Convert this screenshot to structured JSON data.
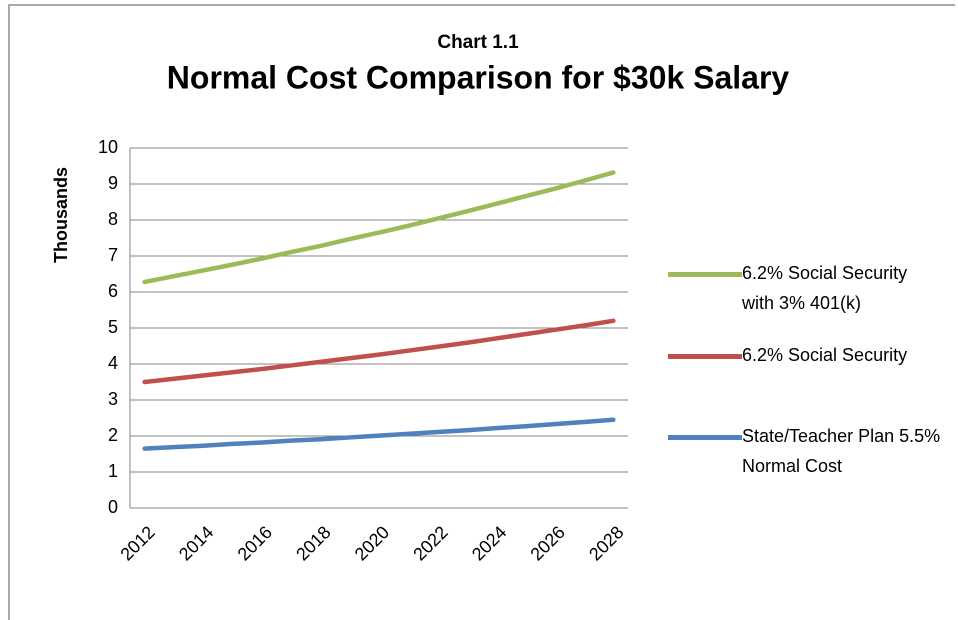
{
  "chart_data": {
    "type": "line",
    "subtitle": "Chart 1.1",
    "title": "Normal Cost Comparison for $30k Salary",
    "y_label": "Thousands",
    "categories": [
      "2012",
      null,
      "2014",
      null,
      "2016",
      null,
      "2018",
      null,
      "2020",
      null,
      "2022",
      null,
      "2024",
      null,
      "2026",
      null,
      "2028"
    ],
    "series": [
      {
        "name": "6.2% Social Security with 3% 401(k)",
        "color": "#9bbb59",
        "values": [
          6.28,
          6.44,
          6.6,
          6.76,
          6.93,
          7.11,
          7.28,
          7.47,
          7.65,
          7.84,
          8.04,
          8.24,
          8.45,
          8.66,
          8.87,
          9.09,
          9.32
        ]
      },
      {
        "name": "6.2% Social Security",
        "color": "#c0504d",
        "values": [
          3.5,
          3.59,
          3.68,
          3.77,
          3.86,
          3.96,
          4.06,
          4.16,
          4.26,
          4.37,
          4.48,
          4.59,
          4.71,
          4.83,
          4.95,
          5.07,
          5.2
        ]
      },
      {
        "name": "State/Teacher Plan 5.5% Normal Cost",
        "color": "#4f81bd",
        "values": [
          1.65,
          1.69,
          1.73,
          1.78,
          1.82,
          1.87,
          1.91,
          1.96,
          2.01,
          2.06,
          2.11,
          2.16,
          2.22,
          2.27,
          2.33,
          2.39,
          2.45
        ]
      }
    ],
    "ylim": [
      0,
      10
    ],
    "yticks": [
      0,
      1,
      2,
      3,
      4,
      5,
      6,
      7,
      8,
      9,
      10
    ],
    "grid": true,
    "legend": "right"
  }
}
